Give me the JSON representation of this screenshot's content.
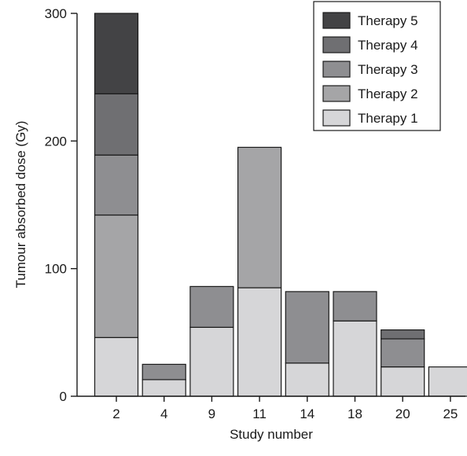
{
  "chart_data": {
    "type": "bar",
    "stacked": true,
    "categories": [
      "2",
      "4",
      "9",
      "11",
      "14",
      "18",
      "20",
      "25"
    ],
    "series": [
      {
        "name": "Therapy 1",
        "color": "#d6d6d8",
        "values": [
          46,
          13,
          54,
          85,
          26,
          59,
          23,
          23
        ]
      },
      {
        "name": "Therapy 2",
        "color": "#a5a5a7",
        "values": [
          96,
          0,
          0,
          110,
          0,
          0,
          0,
          0
        ]
      },
      {
        "name": "Therapy 3",
        "color": "#8e8e91",
        "values": [
          47,
          12,
          32,
          0,
          56,
          23,
          22,
          0
        ]
      },
      {
        "name": "Therapy 4",
        "color": "#6f6f72",
        "values": [
          48,
          0,
          0,
          0,
          0,
          0,
          7,
          0
        ]
      },
      {
        "name": "Therapy 5",
        "color": "#434345",
        "values": [
          63,
          0,
          0,
          0,
          0,
          0,
          0,
          0
        ]
      }
    ],
    "title": "",
    "xlabel": "Study number",
    "ylabel": "Tumour absorbed dose (Gy)",
    "ylim": [
      0,
      300
    ],
    "yticks": [
      0,
      100,
      200,
      300
    ],
    "grid": false,
    "legend_position": "top-right",
    "legend_order": [
      "Therapy 5",
      "Therapy 4",
      "Therapy 3",
      "Therapy 2",
      "Therapy 1"
    ]
  }
}
